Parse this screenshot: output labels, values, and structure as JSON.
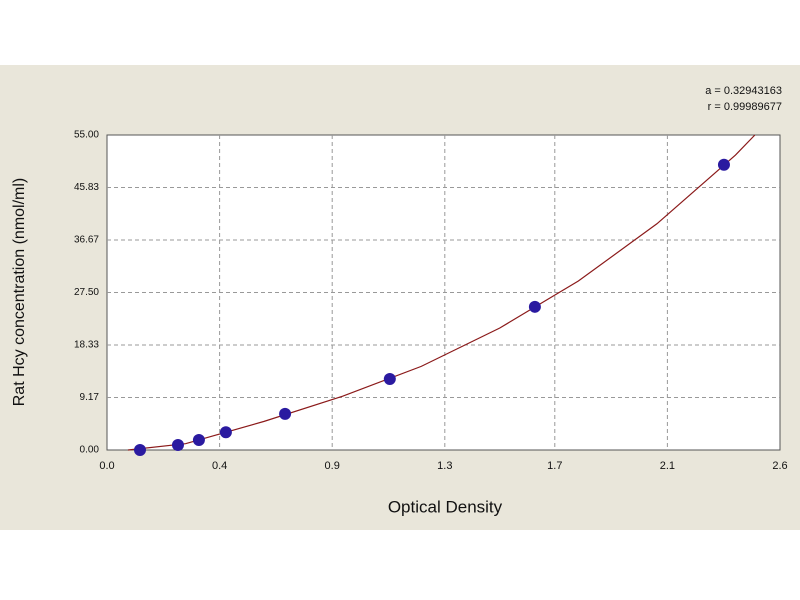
{
  "chart_data": {
    "type": "scatter",
    "stats": [
      "a = 0.32943163",
      "r = 0.99989677"
    ],
    "xlabel": "Optical Density",
    "ylabel": "Rat Hcy concentration (nmol/ml)",
    "x": [
      0.126,
      0.271,
      0.351,
      0.454,
      0.68,
      1.08,
      1.634,
      2.356
    ],
    "values": [
      0,
      0.87,
      1.75,
      3.1,
      6.3,
      12.4,
      25.0,
      49.8
    ],
    "color": "#2a1aa0",
    "curve": {
      "color": "#8b1a1a",
      "x": [
        0.08,
        0.3,
        0.6,
        0.9,
        1.2,
        1.5,
        1.8,
        2.1,
        2.4,
        2.474
      ],
      "y": [
        0,
        1.1,
        5.0,
        9.4,
        14.6,
        21.3,
        29.5,
        39.5,
        51.5,
        55
      ]
    },
    "xlim": [
      0,
      2.57
    ],
    "xticks": [
      {
        "value": 0,
        "label": "0.0"
      },
      {
        "value": 0.43,
        "label": "0.4"
      },
      {
        "value": 0.86,
        "label": "0.9"
      },
      {
        "value": 1.29,
        "label": "1.3"
      },
      {
        "value": 1.71,
        "label": "1.7"
      },
      {
        "value": 2.14,
        "label": "2.1"
      },
      {
        "value": 2.57,
        "label": "2.6"
      }
    ],
    "ylim": [
      0,
      55
    ],
    "yticks": [
      {
        "value": 0,
        "label": "0.00"
      },
      9.17,
      18.33,
      {
        "value": 27.5,
        "label": "27.50"
      },
      36.67,
      45.83,
      {
        "value": 55,
        "label": "55.00"
      }
    ],
    "grid": true
  }
}
